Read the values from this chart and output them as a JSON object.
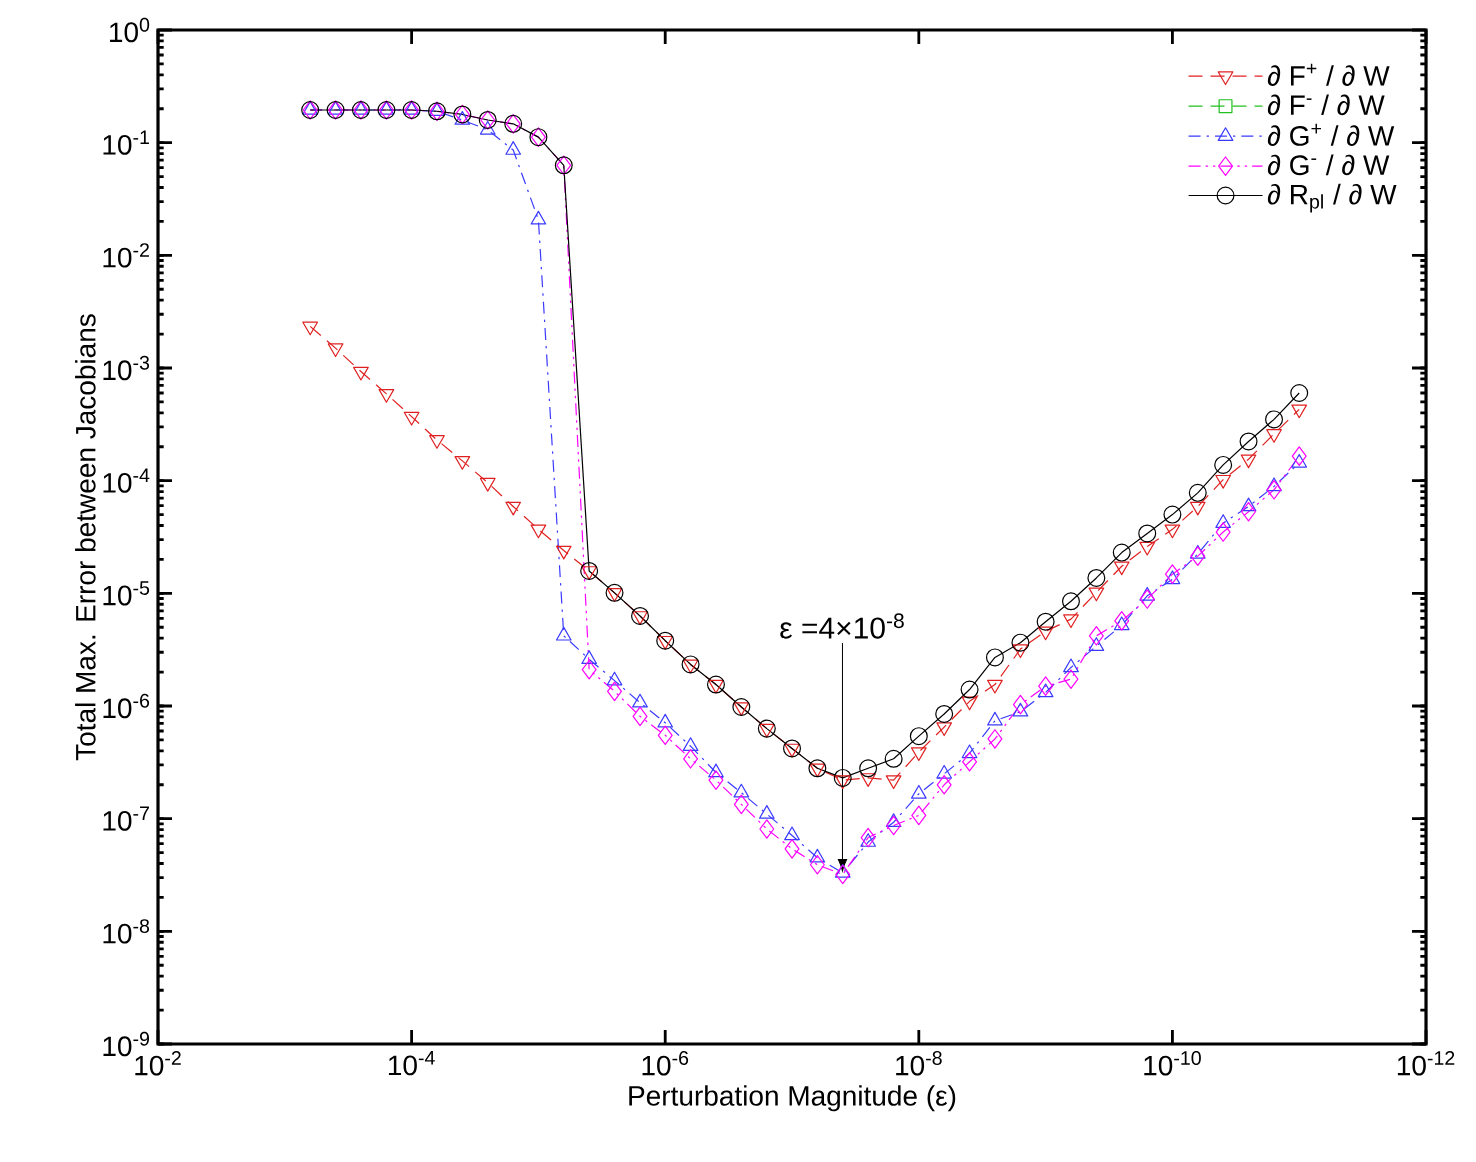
{
  "chart_data": {
    "type": "line",
    "xlabel": "Perturbation Magnitude (ε)",
    "ylabel": "Total Max. Error between Jacobians",
    "log": "xy",
    "legend": "top right",
    "xlim": [
      0.01,
      1e-12
    ],
    "ylim": [
      1e-09,
      1
    ],
    "xticks": [
      {
        "value": 0.01,
        "label": "10$^{-2}$"
      },
      {
        "value": 0.0001,
        "label": "10$^{-4}$"
      },
      {
        "value": 1e-06,
        "label": "10$^{-6}$"
      },
      {
        "value": 1e-08,
        "label": "10$^{-8}$"
      },
      {
        "value": 1e-10,
        "label": "10$^{-10}$"
      },
      {
        "value": 1e-12,
        "label": "10$^{-12}$"
      }
    ],
    "yticks": [
      {
        "value": 1e-09,
        "label": "10$^{-9}$"
      },
      {
        "value": 1e-08,
        "label": "10$^{-8}$"
      },
      {
        "value": 1e-07,
        "label": "10$^{-7}$"
      },
      {
        "value": 1e-06,
        "label": "10$^{-6}$"
      },
      {
        "value": 1e-05,
        "label": "10$^{-5}$"
      },
      {
        "value": 0.0001,
        "label": "10$^{-4}$"
      },
      {
        "value": 0.001,
        "label": "10$^{-3}$"
      },
      {
        "value": 0.01,
        "label": "10$^{-2}$"
      },
      {
        "value": 0.1,
        "label": "10$^{-1}$"
      },
      {
        "value": 1,
        "label": "10$^{0}$"
      }
    ],
    "x": [
      0.000631,
      0.000398,
      0.000251,
      0.000158,
      0.0001,
      6.31e-05,
      3.98e-05,
      2.51e-05,
      1.58e-05,
      1e-05,
      6.31e-06,
      3.98e-06,
      2.51e-06,
      1.58e-06,
      1e-06,
      6.31e-07,
      3.98e-07,
      2.51e-07,
      1.58e-07,
      1e-07,
      6.31e-08,
      3.98e-08,
      2.51e-08,
      1.58e-08,
      1e-08,
      6.31e-09,
      3.98e-09,
      2.51e-09,
      1.58e-09,
      1e-09,
      6.31e-10,
      3.98e-10,
      2.51e-10,
      1.58e-10,
      1e-10,
      6.31e-11,
      3.98e-11,
      2.51e-11,
      1.58e-11,
      1e-11
    ],
    "series": [
      {
        "name": "∂ F$^{+}$ / ∂ W",
        "color": "#e02020",
        "marker": "triangle-down",
        "line_style": "dashed",
        "values": [
          0.00234,
          0.0015,
          0.00093,
          0.00059,
          0.00037,
          0.00023,
          0.00015,
          9.6e-05,
          5.9e-05,
          3.7e-05,
          2.4e-05,
          1.58e-05,
          1.01e-05,
          6.3e-06,
          3.8e-06,
          2.34e-06,
          1.55e-06,
          9.8e-07,
          6.3e-07,
          4.2e-07,
          2.8e-07,
          2.2e-07,
          2.3e-07,
          2.2e-07,
          3.9e-07,
          6.5e-07,
          1.1e-06,
          1.55e-06,
          3.2e-06,
          4.6e-06,
          5.9e-06,
          1.02e-05,
          1.74e-05,
          2.6e-05,
          3.7e-05,
          5.9e-05,
          0.000102,
          0.000155,
          0.00026,
          0.00043
        ]
      },
      {
        "name": "∂ F$^{-}$ / ∂ W",
        "color": "#20c020",
        "marker": "square",
        "line_style": "dashed",
        "values": [
          null,
          null,
          null,
          null,
          null,
          null,
          null,
          null,
          null,
          null,
          null,
          null,
          null,
          null,
          null,
          null,
          null,
          null,
          null,
          null,
          null,
          null,
          null,
          null,
          null,
          null,
          null,
          null,
          null,
          null,
          null,
          null,
          null,
          null,
          null,
          null,
          null,
          null,
          null,
          null
        ]
      },
      {
        "name": "∂ G$^{+}$ / ∂ W",
        "color": "#3a3aff",
        "marker": "triangle",
        "line_style": "dashdot",
        "values": [
          0.195,
          0.195,
          0.195,
          0.195,
          0.195,
          0.19,
          0.159,
          0.13,
          0.086,
          0.0207,
          4.2e-06,
          2.6e-06,
          1.68e-06,
          1.07e-06,
          7.1e-07,
          4.4e-07,
          2.57e-07,
          1.7e-07,
          1.1e-07,
          7.1e-08,
          4.5e-08,
          3.3e-08,
          6.2e-08,
          9.3e-08,
          1.66e-07,
          2.5e-07,
          3.8e-07,
          7.4e-07,
          8.9e-07,
          1.32e-06,
          2.2e-06,
          3.4e-06,
          5.2e-06,
          9.5e-06,
          1.33e-05,
          2.24e-05,
          4.2e-05,
          5.9e-05,
          8.9e-05,
          0.000144
        ]
      },
      {
        "name": "∂ G$^{-}$ / ∂ W",
        "color": "#ff00ff",
        "marker": "diamond",
        "line_style": "dashdotdot",
        "values": [
          0.195,
          0.195,
          0.195,
          0.195,
          0.195,
          0.19,
          0.178,
          0.159,
          0.147,
          0.112,
          0.063,
          2.1e-06,
          1.35e-06,
          8.1e-07,
          5.5e-07,
          3.4e-07,
          2.2e-07,
          1.34e-07,
          8.1e-08,
          5.4e-08,
          3.9e-08,
          3.2e-08,
          6.8e-08,
          8.7e-08,
          1.07e-07,
          2e-07,
          3.2e-07,
          5.1e-07,
          1.03e-06,
          1.5e-06,
          1.73e-06,
          4.2e-06,
          5.7e-06,
          8.9e-06,
          1.48e-05,
          2.14e-05,
          3.5e-05,
          5.3e-05,
          8.3e-05,
          0.000165
        ]
      },
      {
        "name": "∂ R$_{pl}$ / ∂ W",
        "color": "#000000",
        "marker": "circle",
        "line_style": "solid",
        "values": [
          0.195,
          0.195,
          0.195,
          0.195,
          0.195,
          0.19,
          0.178,
          0.159,
          0.147,
          0.112,
          0.063,
          1.58e-05,
          1.01e-05,
          6.3e-06,
          3.8e-06,
          2.34e-06,
          1.55e-06,
          9.8e-07,
          6.3e-07,
          4.2e-07,
          2.8e-07,
          2.3e-07,
          2.8e-07,
          3.4e-07,
          5.4e-07,
          8.5e-07,
          1.4e-06,
          2.7e-06,
          3.65e-06,
          5.6e-06,
          8.5e-06,
          1.37e-05,
          2.3e-05,
          3.4e-05,
          5e-05,
          7.8e-05,
          0.000138,
          0.000223,
          0.00035,
          0.0006
        ]
      }
    ],
    "annotations": [
      {
        "text": "ε =4×10$^{-8}$",
        "x": 4e-08,
        "y": 3.3e-08
      }
    ]
  }
}
